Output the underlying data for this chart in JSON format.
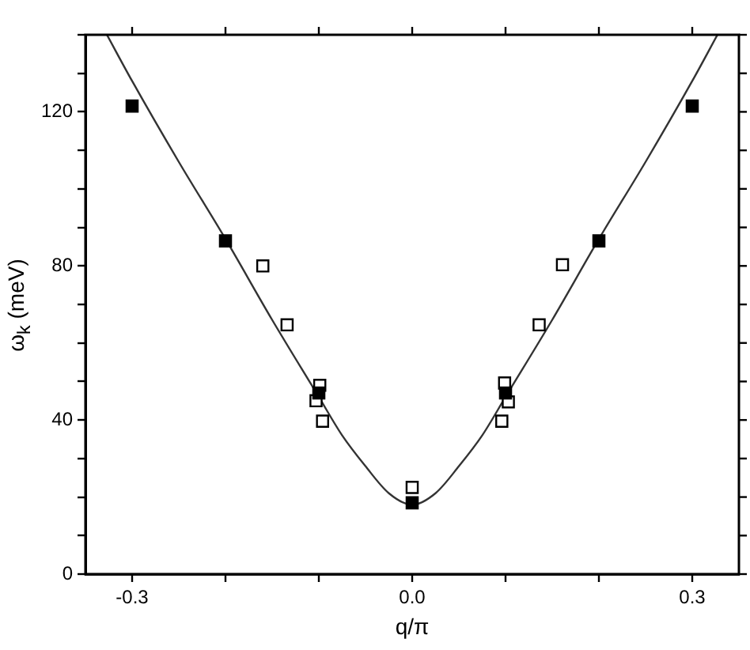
{
  "chart_data": {
    "type": "scatter",
    "xlabel": "q/π",
    "ylabel": "ω$_{k}$ (meV)",
    "xlim": [
      -0.35,
      0.35
    ],
    "ylim": [
      0,
      140
    ],
    "xticks": [
      -0.3,
      {
        "value": -0.2,
        "label": null
      },
      {
        "value": -0.1,
        "label": null
      },
      {
        "value": 0,
        "label": "0.0"
      },
      {
        "value": 0.1,
        "label": null
      },
      {
        "value": 0.2,
        "label": null
      },
      0.3
    ],
    "yticks": [
      0,
      {
        "value": 10,
        "label": null
      },
      {
        "value": 20,
        "label": null
      },
      {
        "value": 30,
        "label": null
      },
      40,
      {
        "value": 50,
        "label": null
      },
      {
        "value": 60,
        "label": null
      },
      {
        "value": 70,
        "label": null
      },
      80,
      {
        "value": 90,
        "label": null
      },
      {
        "value": 100,
        "label": null
      },
      {
        "value": 110,
        "label": null
      },
      120,
      {
        "value": 130,
        "label": null
      },
      {
        "value": 140,
        "label": null
      }
    ],
    "grid": false,
    "legend": false,
    "marker": "square",
    "series": [
      {
        "type": "line",
        "color": "#333333",
        "marker": "none",
        "x": [
          -0.327,
          -0.3,
          -0.25,
          -0.2,
          -0.15,
          -0.1,
          -0.075,
          -0.05,
          -0.025,
          0,
          0.025,
          0.05,
          0.075,
          0.1,
          0.15,
          0.2,
          0.25,
          0.3,
          0.327
        ],
        "values": [
          140,
          128,
          107,
          87,
          66,
          46,
          36,
          28,
          21,
          18,
          21,
          28,
          36,
          46,
          66,
          87,
          107,
          128,
          140
        ]
      },
      {
        "color": "#000000",
        "x": [
          -0.3,
          -0.2,
          -0.1,
          0,
          0.1,
          0.2,
          0.3
        ],
        "values": [
          121.5,
          86.5,
          47,
          18.5,
          47,
          86.5,
          121.5
        ]
      },
      {
        "color": "#ffffff",
        "x": [
          -0.16,
          -0.134,
          -0.099,
          -0.103,
          -0.096,
          0,
          0.099,
          0.103,
          0.096,
          0.136,
          0.161
        ],
        "values": [
          80,
          64.7,
          49,
          45,
          39.7,
          22.5,
          49.6,
          44.7,
          39.7,
          64.7,
          80.3
        ]
      }
    ]
  }
}
